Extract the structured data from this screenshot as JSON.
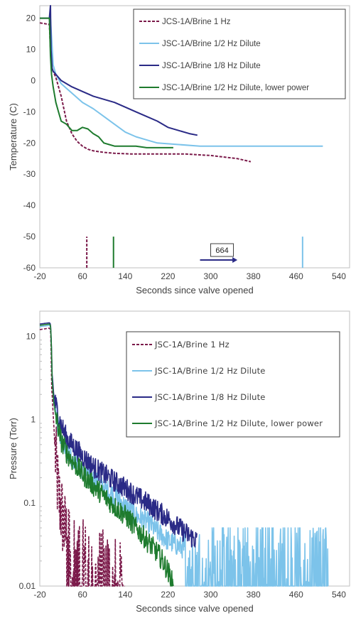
{
  "chart_data": [
    {
      "type": "line",
      "xlabel": "Seconds since valve opened",
      "ylabel": "Temperature (C)",
      "xlim": [
        -20,
        560
      ],
      "ylim": [
        -60,
        24
      ],
      "xticks": [
        -20,
        60,
        140,
        220,
        300,
        380,
        460,
        540
      ],
      "yticks": [
        20,
        10,
        0,
        -10,
        -20,
        -30,
        -40,
        -50,
        -60
      ],
      "grid": false,
      "legend": "top-right",
      "series": [
        {
          "name": "JCS-1A/Brine 1 Hz",
          "color": "#7b1a4a",
          "style": "dashed",
          "x": [
            -20,
            -2,
            0,
            2,
            5,
            10,
            20,
            30,
            40,
            50,
            60,
            70,
            80,
            100,
            120,
            150,
            200,
            250,
            300,
            350,
            375
          ],
          "y": [
            18.5,
            18,
            10,
            4,
            3,
            1,
            -5,
            -13,
            -17,
            -19.5,
            -21,
            -22,
            -22.5,
            -23,
            -23.3,
            -23.5,
            -23.5,
            -23.5,
            -24,
            -25,
            -26
          ]
        },
        {
          "name": "JSC-1A/Brine 1/2 Hz Dilute",
          "color": "#7cc3ea",
          "style": "solid",
          "x": [
            0,
            5,
            10,
            20,
            40,
            60,
            80,
            100,
            120,
            140,
            160,
            180,
            200,
            240,
            280,
            320,
            360,
            400,
            440,
            480,
            510
          ],
          "y": [
            20,
            5,
            2,
            -1,
            -4,
            -7,
            -9,
            -11.5,
            -14,
            -16.5,
            -18,
            -19,
            -20,
            -20.5,
            -21,
            -21,
            -21,
            -21,
            -21,
            -21,
            -21
          ]
        },
        {
          "name": "JSC-1A/Brine 1/8 Hz Dilute",
          "color": "#2a2a86",
          "style": "solid",
          "x": [
            -20,
            -2,
            0,
            1,
            3,
            5,
            10,
            20,
            40,
            60,
            80,
            100,
            120,
            140,
            160,
            180,
            200,
            220,
            240,
            260,
            275
          ],
          "y": [
            20,
            20,
            24,
            10,
            4,
            3,
            2,
            0,
            -2,
            -3.5,
            -5,
            -6,
            -7,
            -8.5,
            -10,
            -11.5,
            -13,
            -15,
            -16,
            -17,
            -17.5
          ]
        },
        {
          "name": "JSC-1A/Brine 1/2 Hz Dilute, lower power",
          "color": "#1e7b2e",
          "style": "solid",
          "x": [
            -20,
            -2,
            0,
            2,
            5,
            10,
            15,
            20,
            25,
            30,
            40,
            50,
            60,
            70,
            80,
            90,
            100,
            110,
            120,
            140,
            160,
            180,
            200,
            230
          ],
          "y": [
            20,
            20,
            8,
            2,
            -2,
            -7,
            -10,
            -13,
            -13.5,
            -14,
            -16,
            -16,
            -15,
            -15.5,
            -17,
            -18,
            -20,
            -20.5,
            -21,
            -21,
            -21,
            -21.5,
            -21.5,
            -21.5
          ]
        }
      ],
      "markers": [
        {
          "x": 68,
          "color": "#7b1a4a",
          "style": "dashed"
        },
        {
          "x": 118,
          "color": "#1e7b2e",
          "style": "solid"
        },
        {
          "x": 472,
          "color": "#7cc3ea",
          "style": "solid"
        }
      ],
      "annotation": {
        "text": "664",
        "arrow_x": [
          280,
          350
        ],
        "arrow_y": -57.5
      }
    },
    {
      "type": "line",
      "xlabel": "Seconds since valve opened",
      "ylabel": "Pressure (Torr)",
      "xlim": [
        -20,
        560
      ],
      "ylim": [
        0.01,
        20
      ],
      "yscale": "log",
      "xticks": [
        -20,
        60,
        140,
        220,
        300,
        380,
        460,
        540
      ],
      "yticks": [
        10,
        1,
        0.1,
        0.01
      ],
      "ytick_labels": [
        "10",
        "1",
        "0.1",
        "0.01"
      ],
      "grid": false,
      "legend": "top-right",
      "series": [
        {
          "name": "JSC-1A/Brine 1 Hz",
          "color": "#7b1a4a",
          "style": "dashed",
          "x": [
            -20,
            -2,
            0,
            2,
            4,
            6,
            8,
            10,
            12,
            15,
            20,
            25,
            30,
            40,
            50,
            60,
            80,
            100,
            120,
            140
          ],
          "y": [
            12,
            12.5,
            12,
            2.5,
            1.5,
            0.9,
            0.5,
            0.3,
            0.2,
            0.12,
            0.08,
            0.05,
            0.04,
            0.03,
            0.025,
            0.02,
            0.018,
            0.015,
            0.012,
            0.01
          ]
        },
        {
          "name": "JSC-1A/Brine 1/2 Hz Dilute",
          "color": "#7cc3ea",
          "style": "solid",
          "x": [
            -20,
            -2,
            0,
            3,
            6,
            10,
            15,
            20,
            30,
            40,
            60,
            80,
            100,
            120,
            140,
            160,
            180,
            200,
            220,
            240,
            270,
            300,
            400,
            500,
            520
          ],
          "y": [
            13,
            13.5,
            13,
            3,
            1.8,
            1.2,
            0.8,
            0.6,
            0.45,
            0.36,
            0.25,
            0.19,
            0.15,
            0.12,
            0.09,
            0.07,
            0.06,
            0.045,
            0.035,
            0.03,
            0.025,
            0.025,
            0.025,
            0.025,
            0.025
          ]
        },
        {
          "name": "JSC-1A/Brine 1/8 Hz Dilute",
          "color": "#2a2a86",
          "style": "solid",
          "x": [
            -20,
            -2,
            0,
            3,
            6,
            10,
            15,
            20,
            30,
            40,
            60,
            80,
            100,
            120,
            140,
            160,
            180,
            200,
            220,
            240,
            260,
            275
          ],
          "y": [
            14,
            14.5,
            14,
            3.5,
            2,
            1.5,
            1.1,
            0.85,
            0.6,
            0.5,
            0.36,
            0.27,
            0.22,
            0.18,
            0.15,
            0.12,
            0.1,
            0.08,
            0.065,
            0.05,
            0.04,
            0.035
          ]
        },
        {
          "name": "JSC-1A/Brine 1/2 Hz Dilute, lower power",
          "color": "#1e7b2e",
          "style": "solid",
          "x": [
            -20,
            -2,
            0,
            3,
            6,
            10,
            15,
            20,
            30,
            40,
            60,
            80,
            100,
            120,
            140,
            160,
            180,
            200,
            220,
            230
          ],
          "y": [
            13.5,
            14,
            13.5,
            3,
            1.6,
            1.1,
            0.75,
            0.55,
            0.4,
            0.32,
            0.22,
            0.16,
            0.12,
            0.09,
            0.07,
            0.05,
            0.035,
            0.025,
            0.015,
            0.01
          ]
        }
      ]
    }
  ]
}
